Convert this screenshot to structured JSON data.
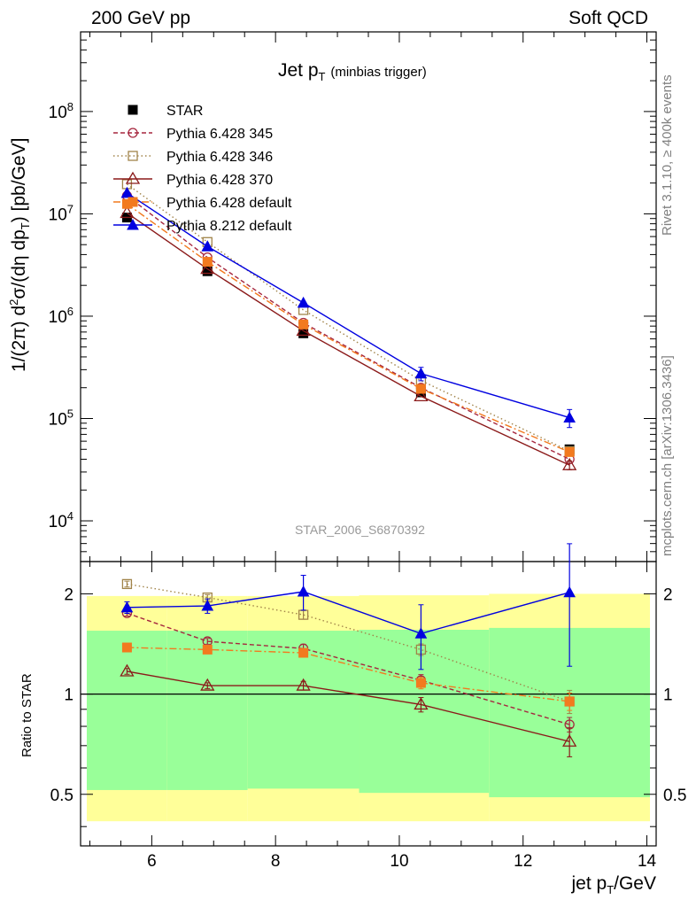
{
  "header": {
    "left": "200 GeV pp",
    "right": "Soft QCD"
  },
  "side_labels": {
    "rivet": "Rivet 3.1.10, ≥ 400k events",
    "mcplots": "mcplots.cern.ch [arXiv:1306.3436]"
  },
  "plot_title": {
    "main": "Jet p",
    "sub": "T",
    "note": "(minbias trigger)"
  },
  "analysis_id": "STAR_2006_S6870392",
  "chart_data": [
    {
      "type": "line",
      "title": "Jet pT (minbias trigger)",
      "ylabel": "1/(2π) d²σ/(dη dpT) [pb/GeV]",
      "yscale": "log",
      "xlim": [
        4.85,
        14.15
      ],
      "ylim": [
        4000,
        600000000
      ],
      "ytick_labels": [
        "10^4",
        "10^5",
        "10^6",
        "10^7",
        "10^8"
      ],
      "x": [
        5.6,
        6.9,
        8.45,
        10.35,
        12.75
      ],
      "series": [
        {
          "name": "STAR",
          "values": [
            9200000,
            2750000,
            680000,
            180000,
            50000
          ],
          "errors": [
            0.06,
            0.06,
            0.06,
            0.06,
            0.06
          ],
          "color": "#000000",
          "marker": "square-filled",
          "dash": "none"
        },
        {
          "name": "Pythia 6.428 345",
          "values": [
            15000000,
            3750000,
            860000,
            200000,
            40000
          ],
          "errors": [
            0.02,
            0.02,
            0.02,
            0.04,
            0.05
          ],
          "color": "#a6273f",
          "marker": "circle-open",
          "dash": "5,3"
        },
        {
          "name": "Pythia 6.428 346",
          "values": [
            19500000,
            5300000,
            1150000,
            235000,
            48000
          ],
          "errors": [
            0.02,
            0.02,
            0.02,
            0.04,
            0.05
          ],
          "color": "#a1844a",
          "marker": "square-open",
          "dash": "1.5,3"
        },
        {
          "name": "Pythia 6.428 370",
          "values": [
            10200000,
            2900000,
            720000,
            165000,
            35000
          ],
          "errors": [
            0.02,
            0.02,
            0.02,
            0.05,
            0.1
          ],
          "color": "#8b1a1a",
          "marker": "triangle-open",
          "dash": "none"
        },
        {
          "name": "Pythia 6.428 default",
          "values": [
            12500000,
            3400000,
            830000,
            195000,
            47000
          ],
          "errors": [
            0.02,
            0.02,
            0.02,
            0.04,
            0.06
          ],
          "color": "#f27a1f",
          "marker": "square-filled",
          "dash": "8,3,2,3"
        },
        {
          "name": "Pythia 8.212 default",
          "values": [
            16000000,
            4800000,
            1350000,
            275000,
            102000
          ],
          "errors": [
            0.02,
            0.02,
            0.03,
            0.15,
            0.2
          ],
          "color": "#0000e0",
          "marker": "triangle-filled",
          "dash": "none"
        }
      ]
    },
    {
      "type": "line",
      "title": "Ratio to STAR",
      "ylabel": "Ratio to STAR",
      "xlabel": "jet pT/GeV",
      "yscale": "log",
      "xlim": [
        4.85,
        14.15
      ],
      "ylim": [
        0.35,
        2.5
      ],
      "ytick_labels": [
        "0.5",
        "1",
        "2"
      ],
      "xtick_labels": [
        "6",
        "8",
        "10",
        "12",
        "14"
      ],
      "x": [
        5.6,
        6.9,
        8.45,
        10.35,
        12.75
      ],
      "bands": {
        "edges": [
          4.95,
          6.25,
          7.55,
          9.35,
          11.45,
          14.05
        ],
        "yellow_lo": [
          0.415,
          0.415,
          0.415,
          0.415,
          0.415
        ],
        "yellow_hi": [
          1.97,
          1.97,
          1.97,
          1.98,
          2.0
        ],
        "green_lo": [
          0.515,
          0.515,
          0.52,
          0.505,
          0.49
        ],
        "green_hi": [
          1.55,
          1.55,
          1.55,
          1.56,
          1.58
        ],
        "yellow_color": "#ffff99",
        "green_color": "#99ff99"
      },
      "series": [
        {
          "name": "Pythia 6.428 345",
          "values": [
            1.75,
            1.44,
            1.37,
            1.1,
            0.81
          ],
          "errors": [
            0.02,
            0.02,
            0.03,
            0.04,
            0.05
          ],
          "color": "#a6273f",
          "marker": "circle-open",
          "dash": "5,3"
        },
        {
          "name": "Pythia 6.428 346",
          "values": [
            2.14,
            1.95,
            1.73,
            1.36,
            0.95
          ],
          "errors": [
            0.02,
            0.02,
            0.03,
            0.04,
            0.08
          ],
          "color": "#a1844a",
          "marker": "square-open",
          "dash": "1.5,3"
        },
        {
          "name": "Pythia 6.428 370",
          "values": [
            1.17,
            1.06,
            1.06,
            0.93,
            0.72
          ],
          "errors": [
            0.02,
            0.02,
            0.03,
            0.05,
            0.1
          ],
          "color": "#8b1a1a",
          "marker": "triangle-open",
          "dash": "none"
        },
        {
          "name": "Pythia 6.428 default",
          "values": [
            1.38,
            1.36,
            1.33,
            1.08,
            0.95
          ],
          "errors": [
            0.02,
            0.02,
            0.03,
            0.04,
            0.06
          ],
          "color": "#f27a1f",
          "marker": "square-filled",
          "dash": "8,3,2,3"
        },
        {
          "name": "Pythia 8.212 default",
          "values": [
            1.82,
            1.84,
            2.03,
            1.52,
            2.02
          ],
          "errors": [
            0.04,
            0.05,
            0.12,
            0.22,
            0.4
          ],
          "color": "#0000e0",
          "marker": "triangle-filled",
          "dash": "none"
        }
      ]
    }
  ]
}
